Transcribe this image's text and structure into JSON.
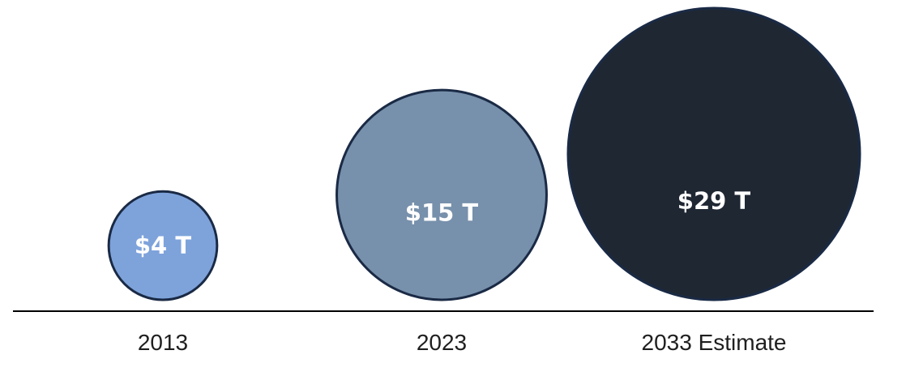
{
  "chart_data": {
    "type": "bubble",
    "categories": [
      "2013",
      "2023",
      "2033 Estimate"
    ],
    "values": [
      4,
      15,
      29
    ],
    "value_labels": [
      "$4 T",
      "$15 T",
      "$29 T"
    ],
    "colors": [
      "#7ea3db",
      "#7790ab",
      "#1f2733"
    ],
    "outline_color": "#1a2a45",
    "axis_color": "#000000",
    "label_color": "#ffffff",
    "title": "",
    "xlabel": "",
    "ylabel": ""
  }
}
